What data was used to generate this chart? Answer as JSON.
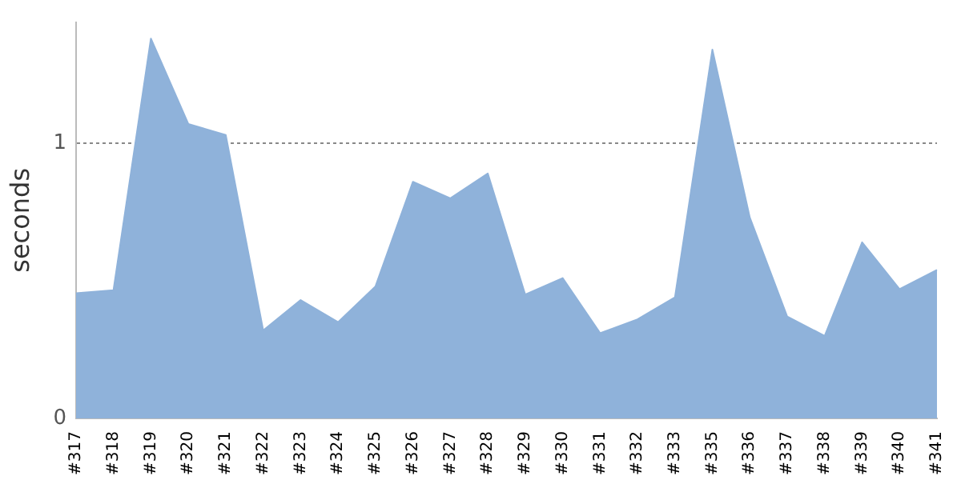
{
  "chart_data": {
    "type": "area",
    "ylabel": "seconds",
    "categories": [
      "#317",
      "#318",
      "#319",
      "#320",
      "#321",
      "#322",
      "#323",
      "#324",
      "#325",
      "#326",
      "#327",
      "#328",
      "#329",
      "#330",
      "#331",
      "#332",
      "#333",
      "#335",
      "#336",
      "#337",
      "#338",
      "#339",
      "#340",
      "#341"
    ],
    "values": [
      0.455,
      0.466,
      1.38,
      1.07,
      1.03,
      0.32,
      0.43,
      0.35,
      0.48,
      0.86,
      0.8,
      0.89,
      0.45,
      0.51,
      0.31,
      0.36,
      0.44,
      1.34,
      0.73,
      0.37,
      0.3,
      0.64,
      0.47,
      0.54
    ],
    "color": "#8fb2da",
    "ylim": [
      0,
      1.44
    ],
    "yticks": [
      0,
      1
    ],
    "grid": "y"
  }
}
